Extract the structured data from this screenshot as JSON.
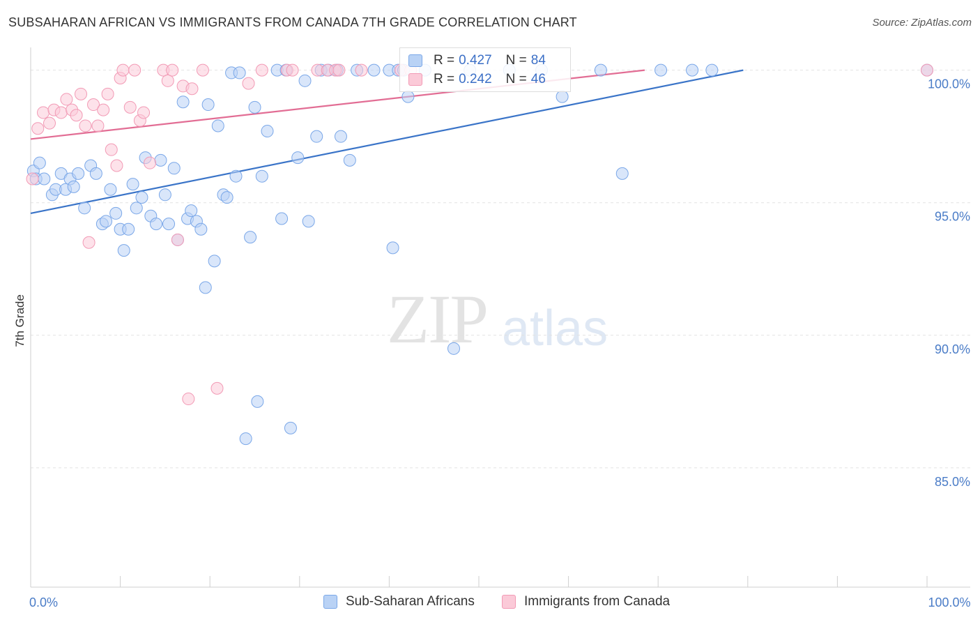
{
  "title": "SUBSAHARAN AFRICAN VS IMMIGRANTS FROM CANADA 7TH GRADE CORRELATION CHART",
  "source": "Source: ZipAtlas.com",
  "watermark": {
    "zip": "ZIP",
    "atlas": "atlas"
  },
  "stats": [
    {
      "r_label": "R =",
      "r_value": "0.427",
      "n_label": "N =",
      "n_value": "84",
      "color": "#7aa7e8",
      "fill": "#b9d2f5"
    },
    {
      "r_label": "R =",
      "r_value": "0.242",
      "n_label": "N =",
      "n_value": "46",
      "color": "#f29ab5",
      "fill": "#fbcad8"
    }
  ],
  "chart_data": {
    "type": "scatter",
    "xlabel": "",
    "ylabel": "7th Grade",
    "xlim": [
      0,
      100
    ],
    "ylim": [
      80.5,
      100.7
    ],
    "x_ticks": [
      {
        "value": 0,
        "label": "0.0%"
      },
      {
        "value": 100,
        "label": "100.0%"
      }
    ],
    "y_ticks": [
      {
        "value": 100,
        "label": "100.0%"
      },
      {
        "value": 95,
        "label": "95.0%"
      },
      {
        "value": 90,
        "label": "90.0%"
      },
      {
        "value": 85,
        "label": "85.0%"
      }
    ],
    "grid": true,
    "legend_position": "bottom",
    "series": [
      {
        "name": "Sub-Saharan Africans",
        "color": "#7aa7e8",
        "fill": "#b9d2f5",
        "trend": {
          "x0": 0,
          "y0": 94.6,
          "x1": 79.5,
          "y1": 100.0
        },
        "points": [
          [
            0.3,
            96.2
          ],
          [
            0.6,
            95.9
          ],
          [
            1.0,
            96.5
          ],
          [
            1.5,
            95.9
          ],
          [
            2.4,
            95.3
          ],
          [
            2.8,
            95.5
          ],
          [
            3.4,
            96.1
          ],
          [
            3.9,
            95.5
          ],
          [
            4.4,
            95.9
          ],
          [
            4.8,
            95.6
          ],
          [
            5.3,
            96.1
          ],
          [
            6.0,
            94.8
          ],
          [
            6.7,
            96.4
          ],
          [
            7.3,
            96.1
          ],
          [
            8.0,
            94.2
          ],
          [
            8.4,
            94.3
          ],
          [
            8.9,
            95.5
          ],
          [
            9.5,
            94.6
          ],
          [
            10.0,
            94.0
          ],
          [
            10.4,
            93.2
          ],
          [
            10.9,
            94.0
          ],
          [
            11.4,
            95.7
          ],
          [
            11.8,
            94.8
          ],
          [
            12.4,
            95.2
          ],
          [
            12.8,
            96.7
          ],
          [
            13.4,
            94.5
          ],
          [
            14.0,
            94.2
          ],
          [
            14.5,
            96.6
          ],
          [
            15.0,
            95.3
          ],
          [
            15.4,
            94.2
          ],
          [
            16.0,
            96.3
          ],
          [
            16.4,
            93.6
          ],
          [
            17.0,
            98.8
          ],
          [
            17.5,
            94.4
          ],
          [
            17.9,
            94.7
          ],
          [
            18.5,
            94.3
          ],
          [
            19.0,
            94.0
          ],
          [
            19.5,
            91.8
          ],
          [
            19.8,
            98.7
          ],
          [
            20.5,
            92.8
          ],
          [
            20.9,
            97.9
          ],
          [
            21.5,
            95.3
          ],
          [
            21.9,
            95.2
          ],
          [
            22.4,
            99.9
          ],
          [
            22.9,
            96.0
          ],
          [
            23.3,
            99.9
          ],
          [
            24.0,
            86.1
          ],
          [
            24.5,
            93.7
          ],
          [
            25.0,
            98.6
          ],
          [
            25.3,
            87.5
          ],
          [
            25.8,
            96.0
          ],
          [
            26.4,
            97.7
          ],
          [
            27.5,
            100.0
          ],
          [
            28.0,
            94.4
          ],
          [
            28.5,
            100.0
          ],
          [
            29.0,
            86.5
          ],
          [
            29.8,
            96.7
          ],
          [
            30.6,
            99.6
          ],
          [
            31.0,
            94.3
          ],
          [
            31.9,
            97.5
          ],
          [
            32.4,
            100.0
          ],
          [
            33.2,
            100.0
          ],
          [
            34.2,
            100.0
          ],
          [
            34.6,
            97.5
          ],
          [
            35.6,
            96.6
          ],
          [
            36.4,
            100.0
          ],
          [
            38.3,
            100.0
          ],
          [
            40.0,
            100.0
          ],
          [
            40.4,
            93.3
          ],
          [
            41.0,
            100.0
          ],
          [
            41.6,
            100.0
          ],
          [
            42.1,
            99.0
          ],
          [
            44.0,
            100.0
          ],
          [
            47.2,
            89.5
          ],
          [
            49.0,
            100.0
          ],
          [
            53.4,
            100.0
          ],
          [
            57.0,
            100.0
          ],
          [
            59.3,
            99.0
          ],
          [
            63.6,
            100.0
          ],
          [
            66.0,
            96.1
          ],
          [
            70.3,
            100.0
          ],
          [
            73.8,
            100.0
          ],
          [
            76.0,
            100.0
          ],
          [
            100.0,
            100.0
          ]
        ]
      },
      {
        "name": "Immigrants from Canada",
        "color": "#f29ab5",
        "fill": "#fbcad8",
        "trend": {
          "x0": 0,
          "y0": 97.4,
          "x1": 68.5,
          "y1": 100.0
        },
        "points": [
          [
            0.2,
            95.9
          ],
          [
            0.8,
            97.8
          ],
          [
            1.4,
            98.4
          ],
          [
            2.1,
            98.0
          ],
          [
            2.6,
            98.5
          ],
          [
            3.4,
            98.4
          ],
          [
            4.0,
            98.9
          ],
          [
            4.6,
            98.5
          ],
          [
            5.1,
            98.3
          ],
          [
            5.6,
            99.1
          ],
          [
            6.1,
            97.9
          ],
          [
            6.5,
            93.5
          ],
          [
            7.0,
            98.7
          ],
          [
            7.5,
            97.9
          ],
          [
            8.1,
            98.5
          ],
          [
            8.6,
            99.1
          ],
          [
            9.0,
            97.0
          ],
          [
            9.6,
            96.4
          ],
          [
            10.0,
            99.7
          ],
          [
            10.3,
            100.0
          ],
          [
            11.1,
            98.6
          ],
          [
            11.6,
            100.0
          ],
          [
            12.2,
            98.1
          ],
          [
            12.6,
            98.4
          ],
          [
            13.3,
            96.5
          ],
          [
            14.8,
            100.0
          ],
          [
            15.3,
            99.6
          ],
          [
            15.8,
            100.0
          ],
          [
            16.4,
            93.6
          ],
          [
            17.0,
            99.4
          ],
          [
            17.6,
            87.6
          ],
          [
            18.0,
            99.3
          ],
          [
            19.2,
            100.0
          ],
          [
            20.8,
            88.0
          ],
          [
            24.3,
            99.5
          ],
          [
            25.8,
            100.0
          ],
          [
            28.6,
            100.0
          ],
          [
            29.2,
            100.0
          ],
          [
            32.0,
            100.0
          ],
          [
            33.1,
            100.0
          ],
          [
            34.0,
            100.0
          ],
          [
            34.4,
            100.0
          ],
          [
            36.9,
            100.0
          ],
          [
            41.3,
            100.0
          ],
          [
            42.4,
            100.0
          ],
          [
            100.0,
            100.0
          ]
        ]
      }
    ]
  }
}
